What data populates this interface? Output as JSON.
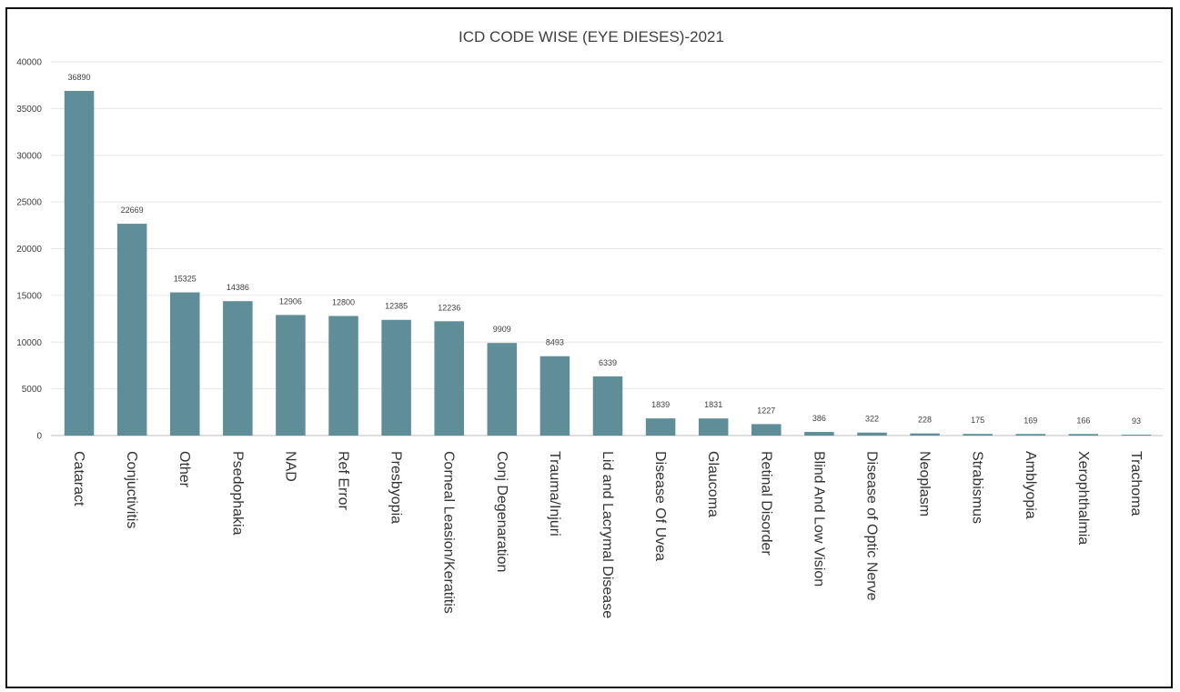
{
  "chart_data": {
    "type": "bar",
    "title": "ICD CODE WISE (EYE DIESES)-2021",
    "xlabel": "",
    "ylabel": "",
    "ylim": [
      0,
      40000
    ],
    "yticks": [
      0,
      5000,
      10000,
      15000,
      20000,
      25000,
      30000,
      35000,
      40000
    ],
    "grid": true,
    "legend": "none",
    "bar_color": "#5f8e98",
    "categories": [
      "Cataract",
      "Conjuctivitis",
      "Other",
      "Psedophakia",
      "NAD",
      "Ref Error",
      "Presbyopia",
      "Corneal Leasion/Keratitis",
      "Conj Degenaration",
      "Trauma/Injuri",
      "Lid and Lacrymal Disease",
      "Disease Of Uvea",
      "Glaucoma",
      "Retinal Disorder",
      "Blind And Low Vision",
      "Disease of Optic Nerve",
      "Neoplasm",
      "Strabismus",
      "Amblyopia",
      "Xerophthalmia",
      "Trachoma"
    ],
    "values": [
      36890,
      22669,
      15325,
      14386,
      12906,
      12800,
      12385,
      12236,
      9909,
      8493,
      6339,
      1839,
      1831,
      1227,
      386,
      322,
      228,
      175,
      169,
      166,
      93
    ]
  }
}
